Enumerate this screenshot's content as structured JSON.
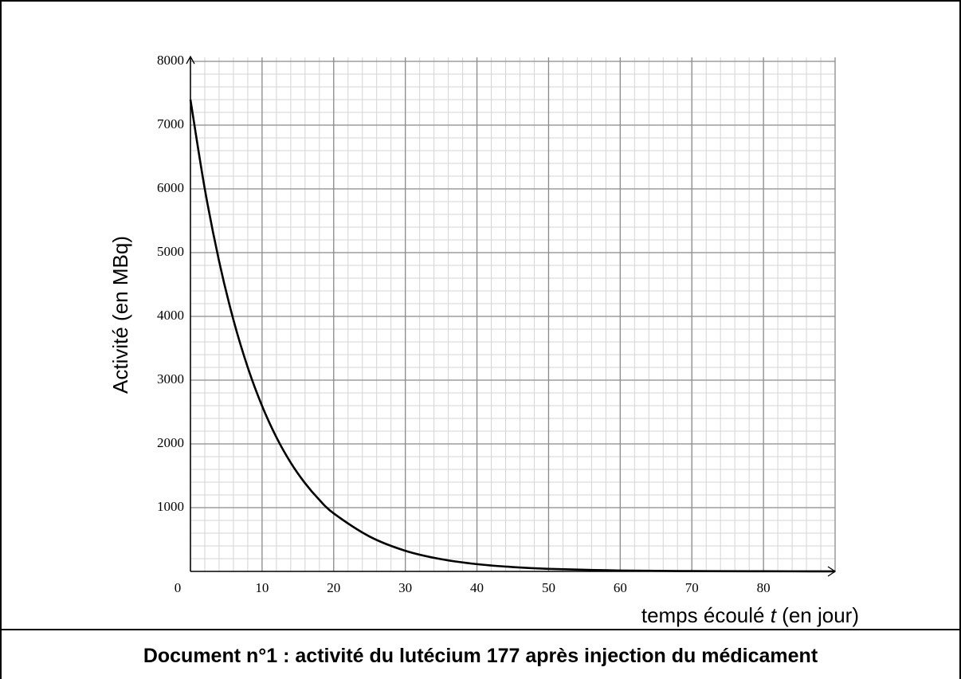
{
  "chart_data": {
    "type": "line",
    "ylabel": "Activité (en MBq)",
    "xlabel_parts": [
      "temps écoulé ",
      "t",
      " (en jour)"
    ],
    "caption": "Document n°1 : activité du lutécium 177 après injection du médicament",
    "x": [
      0,
      2,
      4,
      6,
      8,
      10,
      12,
      14,
      16,
      18,
      20,
      25,
      30,
      35,
      40,
      45,
      50,
      60,
      70,
      80,
      90
    ],
    "series": [
      {
        "color": "#000000",
        "values": [
          7400,
          6001,
          4866,
          3946,
          3200,
          2595,
          2104,
          1706,
          1384,
          1122,
          910,
          548,
          324,
          192,
          114,
          68,
          40,
          14,
          5,
          2,
          1
        ]
      }
    ],
    "xlim": [
      0,
      90
    ],
    "ylim": [
      0,
      8000
    ],
    "xticks": [
      0,
      10,
      20,
      30,
      40,
      50,
      60,
      70,
      80
    ],
    "yticks": [
      1000,
      2000,
      3000,
      4000,
      5000,
      6000,
      7000,
      8000
    ],
    "grid": true
  }
}
